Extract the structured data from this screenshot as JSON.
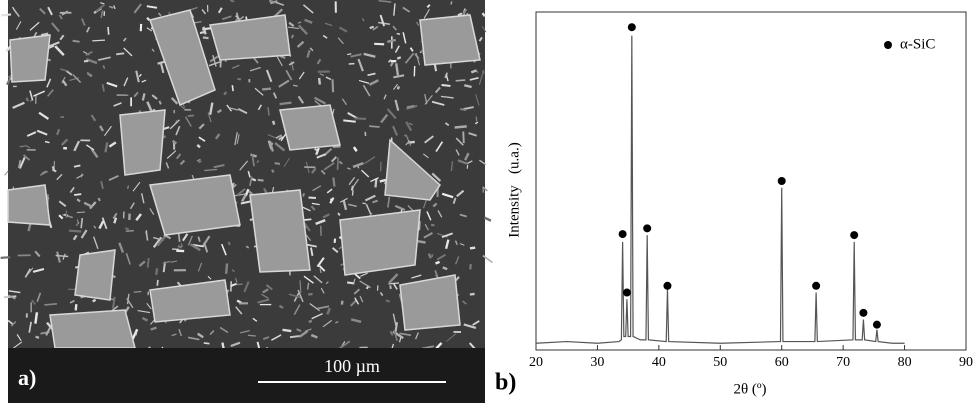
{
  "panel_a": {
    "label": "a)",
    "scale_bar": "100 µm"
  },
  "panel_b_label": "b)",
  "chart_data": {
    "type": "line",
    "xlabel": "2θ (º)",
    "ylabel": "Intensity   (u.a.)",
    "xlim": [
      20,
      90
    ],
    "xticks": [
      20,
      30,
      40,
      50,
      60,
      70,
      80,
      90
    ],
    "ylim": [
      0,
      100
    ],
    "legend": "upper right",
    "series": [
      {
        "color": "#555555",
        "x": [
          20,
          25,
          30,
          33.5,
          33.9,
          34.1,
          34.3,
          34.6,
          34.8,
          35.0,
          35.4,
          35.6,
          35.8,
          37.0,
          37.9,
          38.1,
          38.3,
          41.2,
          41.4,
          41.6,
          50,
          59.8,
          60.0,
          60.2,
          65.4,
          65.6,
          65.8,
          71.6,
          71.8,
          72.0,
          73.1,
          73.3,
          73.5,
          75.3,
          75.5,
          75.7,
          78,
          80
        ],
        "values": [
          2,
          2.5,
          2,
          2.5,
          3,
          32,
          4,
          4,
          15,
          4,
          4,
          93,
          4,
          3,
          3,
          34,
          3,
          2.5,
          18,
          2.5,
          2,
          2.5,
          48,
          2.5,
          2.5,
          17,
          2.5,
          3,
          32,
          3,
          3,
          9,
          3,
          2.5,
          6,
          2.5,
          2,
          2
        ]
      },
      {
        "name": "α-SiC",
        "color": "#000000",
        "marker": "circle",
        "x": [
          34.1,
          34.8,
          35.6,
          38.1,
          41.4,
          60.0,
          65.6,
          71.8,
          73.3,
          75.5
        ],
        "values": [
          34.3,
          17,
          95.5,
          36,
          19,
          50,
          19,
          34,
          11,
          7.5
        ]
      }
    ]
  }
}
